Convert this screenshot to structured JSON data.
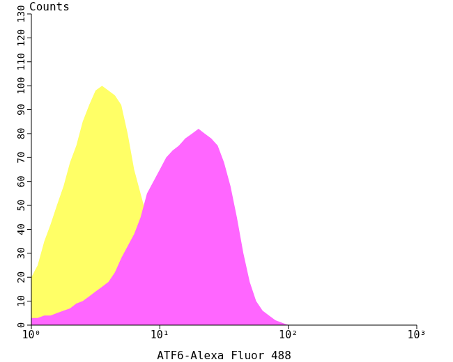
{
  "chart_data": {
    "type": "area",
    "x_label": "ATF6-Alexa Fluor 488",
    "y_label": "Counts",
    "x": [
      1,
      1.12,
      1.26,
      1.41,
      1.58,
      1.78,
      2,
      2.24,
      2.51,
      2.82,
      3.16,
      3.55,
      3.98,
      4.47,
      5.01,
      5.62,
      6.31,
      7.08,
      7.94,
      8.91,
      10,
      11.2,
      12.6,
      14.1,
      15.8,
      17.8,
      20,
      22.4,
      25.1,
      28.2,
      31.6,
      35.5,
      39.8,
      44.7,
      50.1,
      56.2,
      63.1,
      70.8,
      79.4,
      89.1,
      100,
      112,
      126
    ],
    "series": [
      {
        "color": "#ffff66",
        "values": [
          20,
          25,
          35,
          42,
          50,
          58,
          68,
          75,
          85,
          92,
          98,
          100,
          98,
          96,
          92,
          80,
          65,
          55,
          45,
          30,
          18,
          10,
          5,
          3,
          1,
          0,
          0,
          0,
          0,
          0,
          0,
          0,
          0,
          0,
          0,
          0,
          0,
          0,
          0,
          0,
          0,
          0,
          0
        ]
      },
      {
        "color": "#ff66ff",
        "values": [
          3,
          3,
          4,
          4,
          5,
          6,
          7,
          9,
          10,
          12,
          14,
          16,
          18,
          22,
          28,
          33,
          38,
          45,
          55,
          60,
          65,
          70,
          73,
          75,
          78,
          80,
          82,
          80,
          78,
          75,
          68,
          58,
          45,
          30,
          18,
          10,
          6,
          4,
          2,
          1,
          0,
          0,
          0
        ]
      }
    ],
    "xlim": [
      1,
      1000
    ],
    "xticks": [
      {
        "value": 1,
        "label": "10⁰"
      },
      {
        "value": 10,
        "label": "10¹"
      },
      {
        "value": 100,
        "label": "10²"
      },
      {
        "value": 1000,
        "label": "10³"
      }
    ],
    "ylim": [
      0,
      130
    ],
    "yticks": [
      0,
      10,
      20,
      30,
      40,
      50,
      60,
      70,
      80,
      90,
      100,
      110,
      120,
      130
    ],
    "log": "x",
    "grid": false
  }
}
